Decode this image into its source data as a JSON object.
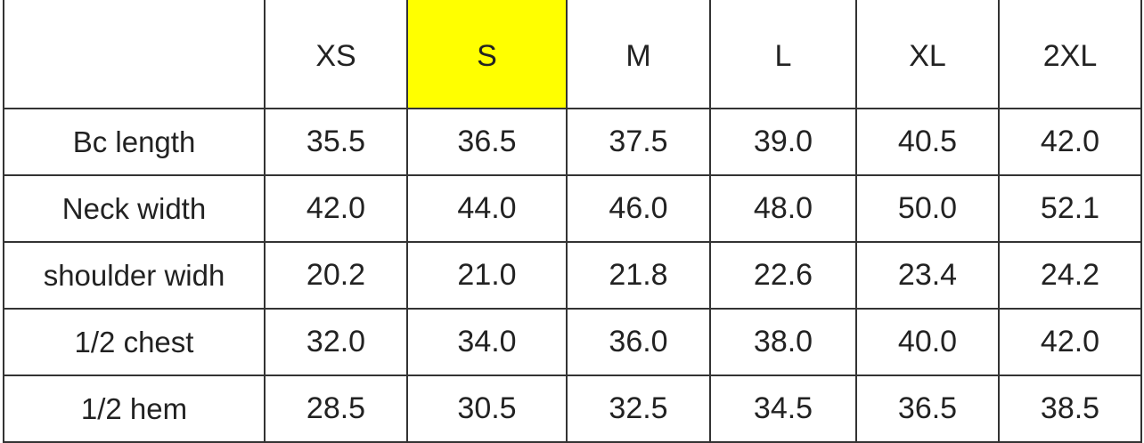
{
  "table": {
    "highlight_color": "#ffff00",
    "highlighted_column": "S",
    "columns": [
      "",
      "XS",
      "S",
      "M",
      "L",
      "XL",
      "2XL"
    ],
    "rows": [
      {
        "label": "Bc length",
        "values": [
          "35.5",
          "36.5",
          "37.5",
          "39.0",
          "40.5",
          "42.0"
        ]
      },
      {
        "label": "Neck width",
        "values": [
          "42.0",
          "44.0",
          "46.0",
          "48.0",
          "50.0",
          "52.1"
        ]
      },
      {
        "label": "shoulder widh",
        "values": [
          "20.2",
          "21.0",
          "21.8",
          "22.6",
          "23.4",
          "24.2"
        ]
      },
      {
        "label": "1/2 chest",
        "values": [
          "32.0",
          "34.0",
          "36.0",
          "38.0",
          "40.0",
          "42.0"
        ]
      },
      {
        "label": "1/2 hem",
        "values": [
          "28.5",
          "30.5",
          "32.5",
          "34.5",
          "36.5",
          "38.5"
        ]
      }
    ]
  }
}
